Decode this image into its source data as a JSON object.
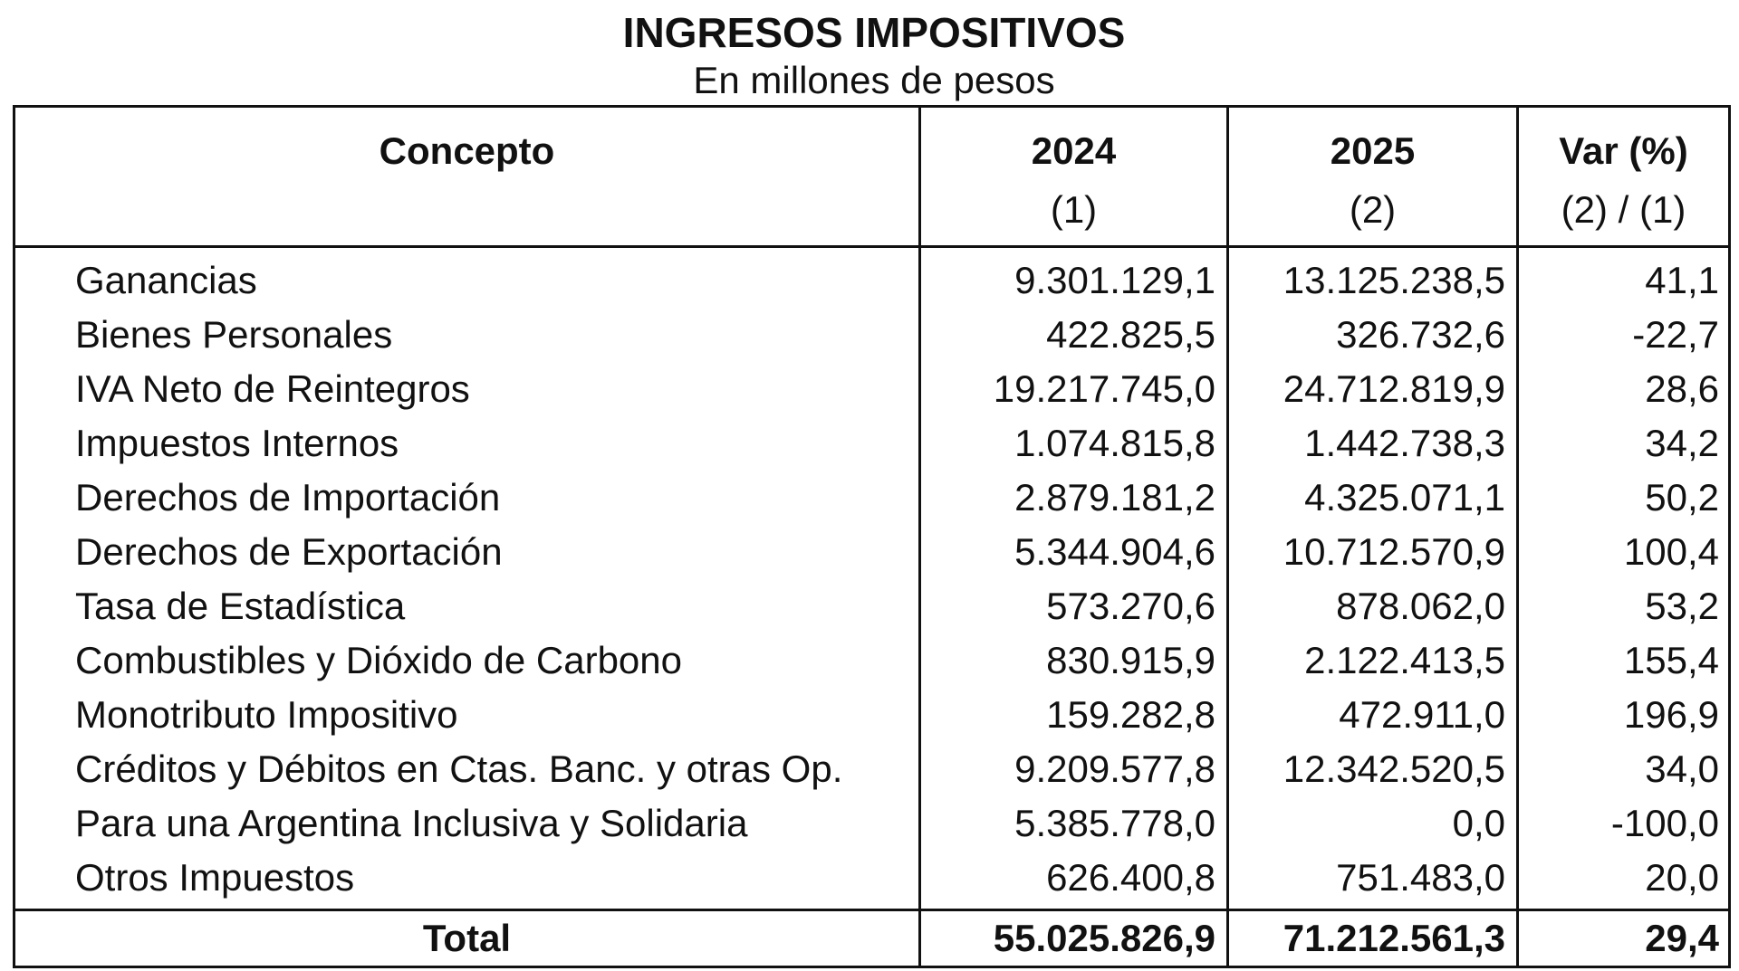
{
  "title": "INGRESOS IMPOSITIVOS",
  "subtitle": "En millones de pesos",
  "header": {
    "concepto": "Concepto",
    "y2024": "2024",
    "y2025": "2025",
    "var": "Var (%)",
    "sub2024": "(1)",
    "sub2025": "(2)",
    "subvar": "(2) / (1)"
  },
  "rows": [
    {
      "concepto": "Ganancias",
      "y2024": "9.301.129,1",
      "y2025": "13.125.238,5",
      "var": "41,1"
    },
    {
      "concepto": "Bienes Personales",
      "y2024": "422.825,5",
      "y2025": "326.732,6",
      "var": "-22,7"
    },
    {
      "concepto": "IVA Neto de Reintegros",
      "y2024": "19.217.745,0",
      "y2025": "24.712.819,9",
      "var": "28,6"
    },
    {
      "concepto": "Impuestos Internos",
      "y2024": "1.074.815,8",
      "y2025": "1.442.738,3",
      "var": "34,2"
    },
    {
      "concepto": "Derechos de Importación",
      "y2024": "2.879.181,2",
      "y2025": "4.325.071,1",
      "var": "50,2"
    },
    {
      "concepto": "Derechos de Exportación",
      "y2024": "5.344.904,6",
      "y2025": "10.712.570,9",
      "var": "100,4"
    },
    {
      "concepto": "Tasa de Estadística",
      "y2024": "573.270,6",
      "y2025": "878.062,0",
      "var": "53,2"
    },
    {
      "concepto": "Combustibles y Dióxido de Carbono",
      "y2024": "830.915,9",
      "y2025": "2.122.413,5",
      "var": "155,4"
    },
    {
      "concepto": "Monotributo Impositivo",
      "y2024": "159.282,8",
      "y2025": "472.911,0",
      "var": "196,9"
    },
    {
      "concepto": "Créditos y Débitos en Ctas. Banc. y otras Op.",
      "y2024": "9.209.577,8",
      "y2025": "12.342.520,5",
      "var": "34,0"
    },
    {
      "concepto": "Para una Argentina Inclusiva y Solidaria",
      "y2024": "5.385.778,0",
      "y2025": "0,0",
      "var": "-100,0"
    },
    {
      "concepto": "Otros Impuestos",
      "y2024": "626.400,8",
      "y2025": "751.483,0",
      "var": "20,0"
    }
  ],
  "total": {
    "concepto": "Total",
    "y2024": "55.025.826,9",
    "y2025": "71.212.561,3",
    "var": "29,4"
  }
}
